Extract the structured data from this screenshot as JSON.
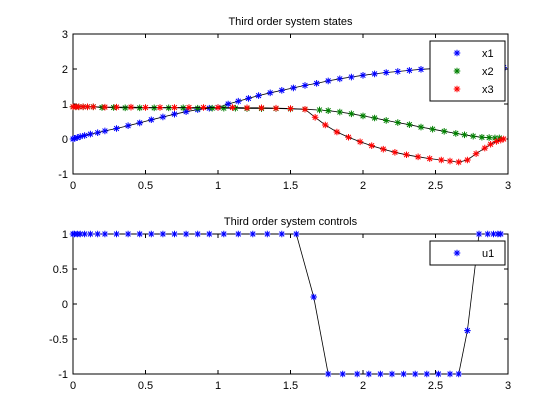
{
  "chart_data": [
    {
      "type": "line",
      "title": "Third order system states",
      "xlabel": "",
      "ylabel": "",
      "xlim": [
        0,
        3
      ],
      "ylim": [
        -1,
        3
      ],
      "xticks": [
        0,
        0.5,
        1,
        1.5,
        2,
        2.5,
        3
      ],
      "yticks": [
        -1,
        0,
        1,
        2,
        3
      ],
      "xtick_labels": [
        "0",
        "0.5",
        "1",
        "1.5",
        "2",
        "2.5",
        "3"
      ],
      "ytick_labels": [
        "-1",
        "0",
        "1",
        "2",
        "3"
      ],
      "grid": false,
      "legend_position": "top-right",
      "fit_line_color": "#000000",
      "series": [
        {
          "name": "x1",
          "color": "#0000ff",
          "marker": "*",
          "x": [
            0,
            0.01,
            0.03,
            0.05,
            0.08,
            0.12,
            0.17,
            0.22,
            0.3,
            0.38,
            0.46,
            0.54,
            0.62,
            0.7,
            0.78,
            0.86,
            0.94,
            1.0,
            1.07,
            1.14,
            1.21,
            1.28,
            1.36,
            1.44,
            1.52,
            1.6,
            1.68,
            1.76,
            1.84,
            1.92,
            2.0,
            2.08,
            2.16,
            2.24,
            2.32,
            2.4,
            2.48,
            2.56,
            2.64,
            2.7,
            2.76,
            2.82,
            2.86,
            2.9,
            2.93,
            2.95,
            2.97
          ],
          "y": [
            0.0,
            0.02,
            0.04,
            0.07,
            0.1,
            0.14,
            0.18,
            0.23,
            0.3,
            0.38,
            0.46,
            0.55,
            0.63,
            0.71,
            0.78,
            0.84,
            0.88,
            0.9,
            1.0,
            1.08,
            1.16,
            1.24,
            1.32,
            1.39,
            1.46,
            1.53,
            1.59,
            1.66,
            1.72,
            1.77,
            1.82,
            1.86,
            1.9,
            1.93,
            1.96,
            1.99,
            2.01,
            2.03,
            2.04,
            2.05,
            2.06,
            2.06,
            2.06,
            2.06,
            2.05,
            2.05,
            2.04
          ]
        },
        {
          "name": "x2",
          "color": "#008000",
          "marker": "*",
          "x": [
            0,
            0.02,
            0.04,
            0.07,
            0.1,
            0.14,
            0.2,
            0.28,
            0.36,
            0.46,
            0.56,
            0.66,
            0.76,
            0.86,
            0.96,
            1.04,
            1.12,
            1.2,
            1.3,
            1.4,
            1.5,
            1.6,
            1.7,
            1.76,
            1.84,
            1.92,
            2.0,
            2.08,
            2.16,
            2.24,
            2.32,
            2.4,
            2.48,
            2.56,
            2.64,
            2.7,
            2.76,
            2.82,
            2.87,
            2.91,
            2.94
          ],
          "y": [
            0.92,
            0.92,
            0.92,
            0.92,
            0.92,
            0.92,
            0.9,
            0.9,
            0.89,
            0.89,
            0.89,
            0.89,
            0.89,
            0.88,
            0.88,
            0.88,
            0.88,
            0.87,
            0.87,
            0.87,
            0.86,
            0.85,
            0.83,
            0.81,
            0.77,
            0.72,
            0.66,
            0.6,
            0.53,
            0.47,
            0.41,
            0.34,
            0.28,
            0.22,
            0.16,
            0.12,
            0.08,
            0.05,
            0.04,
            0.03,
            0.03
          ]
        },
        {
          "name": "x3",
          "color": "#ff0000",
          "marker": "*",
          "x": [
            0,
            0.02,
            0.04,
            0.07,
            0.1,
            0.14,
            0.22,
            0.3,
            0.4,
            0.5,
            0.6,
            0.7,
            0.8,
            0.9,
            1.0,
            1.1,
            1.2,
            1.3,
            1.4,
            1.5,
            1.6,
            1.67,
            1.74,
            1.82,
            1.9,
            1.98,
            2.06,
            2.14,
            2.22,
            2.3,
            2.38,
            2.46,
            2.54,
            2.6,
            2.66,
            2.72,
            2.78,
            2.84,
            2.88,
            2.92,
            2.95,
            2.97
          ],
          "y": [
            0.92,
            0.92,
            0.92,
            0.92,
            0.92,
            0.92,
            0.91,
            0.91,
            0.91,
            0.9,
            0.9,
            0.9,
            0.9,
            0.9,
            0.9,
            0.9,
            0.89,
            0.89,
            0.88,
            0.87,
            0.85,
            0.62,
            0.4,
            0.2,
            0.05,
            -0.08,
            -0.19,
            -0.29,
            -0.38,
            -0.45,
            -0.51,
            -0.56,
            -0.6,
            -0.63,
            -0.66,
            -0.6,
            -0.42,
            -0.26,
            -0.15,
            -0.07,
            -0.03,
            0.0
          ]
        }
      ]
    },
    {
      "type": "line",
      "title": "Third order system controls",
      "xlabel": "",
      "ylabel": "",
      "xlim": [
        0,
        3
      ],
      "ylim": [
        -1,
        1
      ],
      "xticks": [
        0,
        0.5,
        1,
        1.5,
        2,
        2.5,
        3
      ],
      "yticks": [
        -1,
        -0.5,
        0,
        0.5,
        1
      ],
      "xtick_labels": [
        "0",
        "0.5",
        "1",
        "1.5",
        "2",
        "2.5",
        "3"
      ],
      "ytick_labels": [
        "-1",
        "-0.5",
        "0",
        "0.5",
        "1"
      ],
      "grid": false,
      "legend_position": "top-right",
      "fit_line_color": "#000000",
      "series": [
        {
          "name": "u1",
          "color": "#0000ff",
          "marker": "*",
          "x": [
            0,
            0.01,
            0.03,
            0.05,
            0.08,
            0.12,
            0.17,
            0.22,
            0.3,
            0.38,
            0.46,
            0.54,
            0.62,
            0.7,
            0.78,
            0.86,
            0.94,
            1.04,
            1.14,
            1.24,
            1.34,
            1.44,
            1.54,
            1.66,
            1.76,
            1.86,
            1.96,
            2.04,
            2.12,
            2.2,
            2.28,
            2.36,
            2.44,
            2.52,
            2.6,
            2.66,
            2.72,
            2.8,
            2.86,
            2.9,
            2.93,
            2.95
          ],
          "y": [
            1,
            1,
            1,
            1,
            1,
            1,
            1,
            1,
            1,
            1,
            1,
            1,
            1,
            1,
            1,
            1,
            1,
            1,
            1,
            1,
            1,
            1,
            1,
            0.1,
            -1,
            -1,
            -1,
            -1,
            -1,
            -1,
            -1,
            -1,
            -1,
            -1,
            -1,
            -1,
            -0.38,
            1,
            1,
            1,
            1,
            1
          ]
        }
      ]
    }
  ]
}
